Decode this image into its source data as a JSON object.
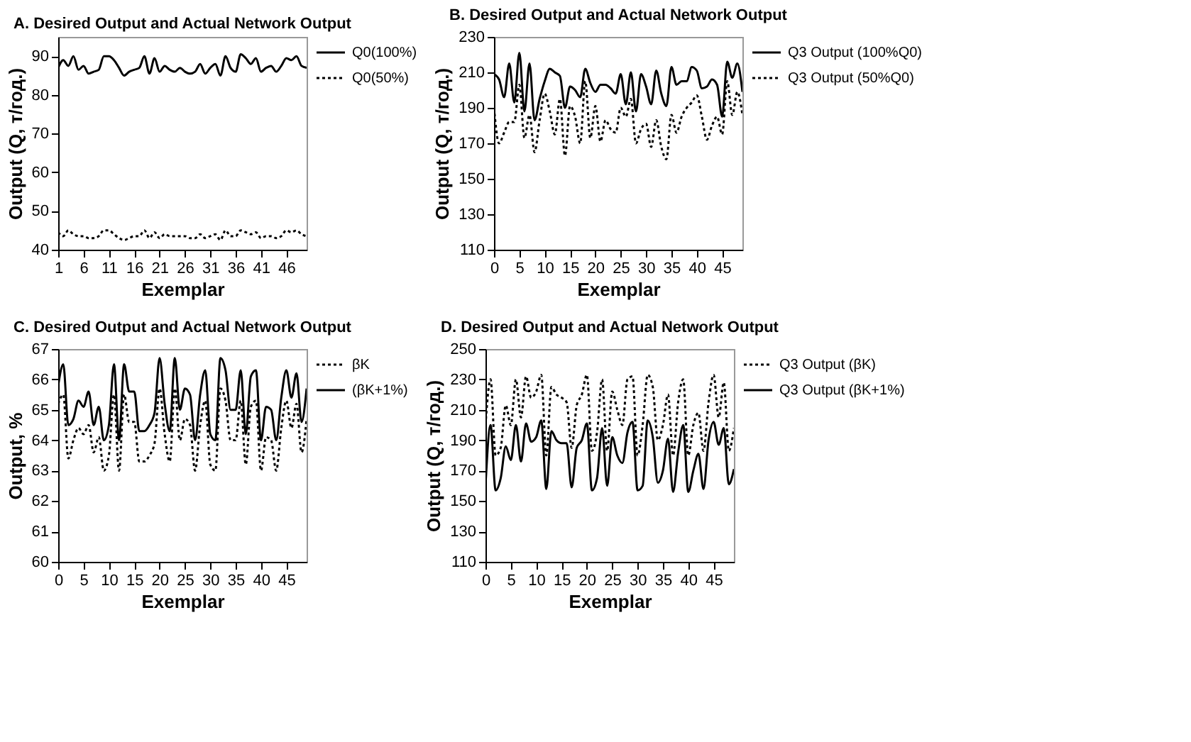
{
  "chart_data": [
    {
      "type": "line",
      "title": "A. Desired Output and Actual Network Output",
      "xlabel": "Exemplar",
      "ylabel": "Output (Q, т/год.)",
      "x": [
        1,
        2,
        3,
        4,
        5,
        6,
        7,
        8,
        9,
        10,
        11,
        12,
        13,
        14,
        15,
        16,
        17,
        18,
        19,
        20,
        21,
        22,
        23,
        24,
        25,
        26,
        27,
        28,
        29,
        30,
        31,
        32,
        33,
        34,
        35,
        36,
        37,
        38,
        39,
        40,
        41,
        42,
        43,
        44,
        45,
        46,
        47,
        48,
        49,
        50
      ],
      "xlim": [
        1,
        50
      ],
      "xticks": [
        1,
        6,
        11,
        16,
        21,
        26,
        31,
        36,
        41,
        46
      ],
      "ylim": [
        40,
        95
      ],
      "yticks": [
        40,
        50,
        60,
        70,
        80,
        90
      ],
      "grid": false,
      "legend": "right",
      "marker": "none",
      "series": [
        {
          "name": "Q0(100%)",
          "color": "#000000",
          "line_style": "solid",
          "values": [
            87,
            89,
            87.5,
            90,
            86.5,
            87.5,
            85.5,
            86,
            86.5,
            90,
            90,
            89,
            87,
            85,
            86,
            86.5,
            87,
            90,
            85.5,
            89.5,
            86,
            87.5,
            86.5,
            86,
            87,
            86,
            85.5,
            86,
            88,
            85.5,
            87,
            88,
            85,
            90,
            87,
            86,
            90.5,
            89.5,
            88,
            89.5,
            86,
            87,
            87.5,
            86,
            87.5,
            89.5,
            89,
            90,
            87.5,
            87
          ]
        },
        {
          "name": "Q0(50%)",
          "color": "#000000",
          "line_style": "dotted",
          "values": [
            44.5,
            43.5,
            45,
            44,
            43.5,
            43.5,
            43,
            43,
            43.5,
            45,
            45,
            44,
            43,
            42.5,
            43,
            43.5,
            43.5,
            45,
            43,
            44.5,
            43,
            44,
            43.5,
            43.5,
            43.5,
            43.5,
            43,
            43,
            44,
            43,
            43.5,
            44,
            42.5,
            45,
            43.5,
            43.5,
            45,
            44.5,
            44,
            44.5,
            43,
            43.5,
            43.5,
            43,
            43.5,
            45,
            44.5,
            45,
            44,
            43.5
          ]
        }
      ]
    },
    {
      "type": "line",
      "title": "B. Desired Output and Actual Network Output",
      "xlabel": "Exemplar",
      "ylabel": "Output (Q, т/год.)",
      "x": [
        0,
        1,
        2,
        3,
        4,
        5,
        6,
        7,
        8,
        9,
        10,
        11,
        12,
        13,
        14,
        15,
        16,
        17,
        18,
        19,
        20,
        21,
        22,
        23,
        24,
        25,
        26,
        27,
        28,
        29,
        30,
        31,
        32,
        33,
        34,
        35,
        36,
        37,
        38,
        39,
        40,
        41,
        42,
        43,
        44,
        45,
        46,
        47,
        48,
        49
      ],
      "xlim": [
        0,
        49
      ],
      "xticks": [
        0,
        5,
        10,
        15,
        20,
        25,
        30,
        35,
        40,
        45
      ],
      "ylim": [
        110,
        230
      ],
      "yticks": [
        110,
        130,
        150,
        170,
        190,
        210,
        230
      ],
      "grid": false,
      "legend": "right",
      "marker": "none",
      "series": [
        {
          "name": "Q3 Output (100%Q0)",
          "color": "#000000",
          "line_style": "solid",
          "values": [
            209,
            206,
            196,
            215,
            193,
            221,
            188,
            215,
            183,
            195,
            205,
            212,
            210,
            208,
            190,
            202,
            200,
            196,
            212,
            204,
            199,
            203,
            203,
            201,
            198,
            209,
            192,
            210,
            188,
            209,
            202,
            192,
            211,
            198,
            191,
            213,
            203,
            205,
            205,
            213,
            211,
            201,
            202,
            206,
            203,
            185,
            216,
            207,
            215,
            199
          ]
        },
        {
          "name": "Q3 Output (50%Q0)",
          "color": "#000000",
          "line_style": "dotted",
          "values": [
            190,
            170,
            176,
            182,
            182,
            203,
            173,
            186,
            165,
            183,
            198,
            188,
            175,
            195,
            163,
            191,
            185,
            170,
            205,
            173,
            191,
            171,
            183,
            178,
            176,
            190,
            185,
            195,
            170,
            178,
            181,
            168,
            183,
            168,
            161,
            186,
            176,
            185,
            190,
            193,
            197,
            185,
            172,
            180,
            185,
            175,
            205,
            186,
            199,
            186
          ]
        }
      ]
    },
    {
      "type": "line",
      "title": "C. Desired Output and Actual Network Output",
      "xlabel": "Exemplar",
      "ylabel": "Output, %",
      "x": [
        0,
        1,
        2,
        3,
        4,
        5,
        6,
        7,
        8,
        9,
        10,
        11,
        12,
        13,
        14,
        15,
        16,
        17,
        18,
        19,
        20,
        21,
        22,
        23,
        24,
        25,
        26,
        27,
        28,
        29,
        30,
        31,
        32,
        33,
        34,
        35,
        36,
        37,
        38,
        39,
        40,
        41,
        42,
        43,
        44,
        45,
        46,
        47,
        48,
        49
      ],
      "xlim": [
        0,
        49
      ],
      "xticks": [
        0,
        5,
        10,
        15,
        20,
        25,
        30,
        35,
        40,
        45
      ],
      "ylim": [
        60,
        67
      ],
      "yticks": [
        60,
        61,
        62,
        63,
        64,
        65,
        66,
        67
      ],
      "grid": false,
      "legend": "right",
      "marker": "none",
      "series": [
        {
          "name": "βK",
          "color": "#000000",
          "line_style": "dotted",
          "values": [
            65.2,
            65.5,
            63.4,
            64.0,
            64.4,
            64.2,
            64.5,
            63.6,
            64.1,
            63.0,
            63.5,
            65.5,
            63.0,
            65.5,
            64.6,
            64.6,
            63.3,
            63.3,
            63.5,
            63.9,
            65.7,
            64.2,
            63.3,
            65.7,
            64.0,
            64.7,
            64.5,
            63.0,
            64.5,
            65.3,
            63.2,
            63.0,
            65.7,
            65.3,
            64.0,
            64.0,
            65.3,
            63.2,
            65.1,
            65.3,
            63.0,
            64.1,
            64.0,
            63.0,
            64.4,
            65.3,
            64.4,
            65.2,
            63.6,
            64.7
          ]
        },
        {
          "name": "(βK+1%)",
          "color": "#000000",
          "line_style": "solid",
          "values": [
            65.8,
            66.5,
            64.5,
            64.7,
            65.3,
            65.1,
            65.6,
            64.5,
            65.1,
            64.0,
            64.5,
            66.5,
            64.0,
            66.5,
            65.6,
            65.6,
            64.3,
            64.3,
            64.5,
            64.9,
            66.7,
            65.2,
            64.3,
            66.7,
            65.0,
            65.7,
            65.5,
            64.0,
            65.5,
            66.3,
            64.2,
            64.0,
            66.7,
            66.3,
            65.0,
            65.0,
            66.3,
            64.2,
            66.1,
            66.3,
            64.0,
            65.1,
            65.0,
            64.0,
            65.4,
            66.3,
            65.4,
            66.2,
            64.6,
            65.7
          ]
        }
      ]
    },
    {
      "type": "line",
      "title": "D. Desired Output and Actual Network Output",
      "xlabel": "Exemplar",
      "ylabel": "Output (Q, т/год.)",
      "x": [
        0,
        1,
        2,
        3,
        4,
        5,
        6,
        7,
        8,
        9,
        10,
        11,
        12,
        13,
        14,
        15,
        16,
        17,
        18,
        19,
        20,
        21,
        22,
        23,
        24,
        25,
        26,
        27,
        28,
        29,
        30,
        31,
        32,
        33,
        34,
        35,
        36,
        37,
        38,
        39,
        40,
        41,
        42,
        43,
        44,
        45,
        46,
        47,
        48,
        49
      ],
      "xlim": [
        0,
        49
      ],
      "xticks": [
        0,
        5,
        10,
        15,
        20,
        25,
        30,
        35,
        40,
        45
      ],
      "ylim": [
        110,
        250
      ],
      "yticks": [
        110,
        130,
        150,
        170,
        190,
        210,
        230,
        250
      ],
      "grid": false,
      "legend": "right",
      "marker": "none",
      "series": [
        {
          "name": "Q3 Output (βK)",
          "color": "#000000",
          "line_style": "dotted",
          "values": [
            200,
            230,
            180,
            185,
            213,
            200,
            230,
            205,
            232,
            218,
            222,
            233,
            180,
            225,
            220,
            218,
            215,
            185,
            213,
            220,
            233,
            183,
            195,
            230,
            183,
            222,
            210,
            200,
            230,
            232,
            180,
            200,
            233,
            225,
            190,
            200,
            220,
            180,
            215,
            230,
            180,
            200,
            208,
            183,
            215,
            233,
            205,
            228,
            183,
            198
          ]
        },
        {
          "name": "Q3 Output (βK+1%)",
          "color": "#000000",
          "line_style": "solid",
          "values": [
            160,
            200,
            157,
            165,
            186,
            177,
            200,
            176,
            201,
            189,
            192,
            203,
            158,
            196,
            190,
            188,
            188,
            159,
            185,
            190,
            201,
            157,
            165,
            198,
            160,
            192,
            180,
            175,
            195,
            202,
            157,
            160,
            203,
            192,
            162,
            170,
            191,
            156,
            182,
            200,
            156,
            170,
            181,
            158,
            190,
            202,
            187,
            198,
            161,
            171
          ]
        }
      ]
    }
  ]
}
